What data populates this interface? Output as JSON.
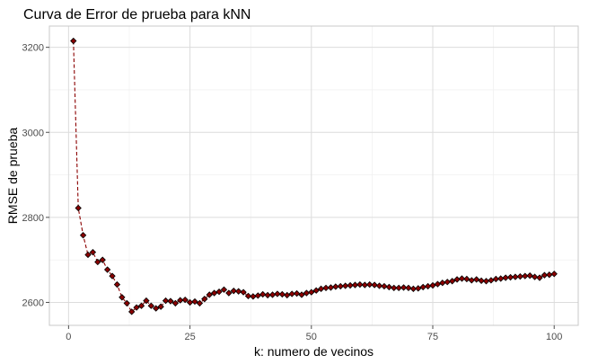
{
  "chart_data": {
    "type": "line",
    "title": "Curva de Error de prueba para kNN",
    "xlabel": "k: numero de vecinos",
    "ylabel": "RMSE de prueba",
    "xlim": [
      -3.95,
      104.95
    ],
    "ylim": [
      2546,
      3250
    ],
    "x_ticks": [
      0,
      25,
      50,
      75,
      100
    ],
    "y_ticks": [
      2600,
      2800,
      3000,
      3200
    ],
    "grid": true,
    "legend": "none",
    "line_color": "#8b0000",
    "point_color": "#8b0000",
    "series": [
      {
        "x": [
          1,
          2,
          3,
          4,
          5,
          6,
          7,
          8,
          9,
          10,
          11,
          12,
          13,
          14,
          15,
          16,
          17,
          18,
          19,
          20,
          21,
          22,
          23,
          24,
          25,
          26,
          27,
          28,
          29,
          30,
          31,
          32,
          33,
          34,
          35,
          36,
          37,
          38,
          39,
          40,
          41,
          42,
          43,
          44,
          45,
          46,
          47,
          48,
          49,
          50,
          51,
          52,
          53,
          54,
          55,
          56,
          57,
          58,
          59,
          60,
          61,
          62,
          63,
          64,
          65,
          66,
          67,
          68,
          69,
          70,
          71,
          72,
          73,
          74,
          75,
          76,
          77,
          78,
          79,
          80,
          81,
          82,
          83,
          84,
          85,
          86,
          87,
          88,
          89,
          90,
          91,
          92,
          93,
          94,
          95,
          96,
          97,
          98,
          99,
          100
        ],
        "values": [
          3215,
          2822,
          2758,
          2712,
          2718,
          2695,
          2700,
          2677,
          2662,
          2642,
          2612,
          2598,
          2578,
          2588,
          2592,
          2604,
          2592,
          2586,
          2590,
          2604,
          2603,
          2598,
          2605,
          2606,
          2600,
          2602,
          2598,
          2608,
          2618,
          2622,
          2625,
          2630,
          2622,
          2627,
          2626,
          2624,
          2615,
          2614,
          2616,
          2619,
          2617,
          2618,
          2620,
          2619,
          2617,
          2620,
          2621,
          2618,
          2622,
          2624,
          2628,
          2632,
          2634,
          2635,
          2637,
          2638,
          2639,
          2640,
          2641,
          2642,
          2641,
          2642,
          2641,
          2639,
          2638,
          2636,
          2634,
          2634,
          2635,
          2634,
          2632,
          2633,
          2636,
          2638,
          2640,
          2643,
          2646,
          2648,
          2650,
          2654,
          2656,
          2655,
          2652,
          2654,
          2651,
          2650,
          2652,
          2655,
          2656,
          2658,
          2659,
          2660,
          2661,
          2662,
          2663,
          2660,
          2658,
          2664,
          2665,
          2667
        ]
      }
    ]
  }
}
